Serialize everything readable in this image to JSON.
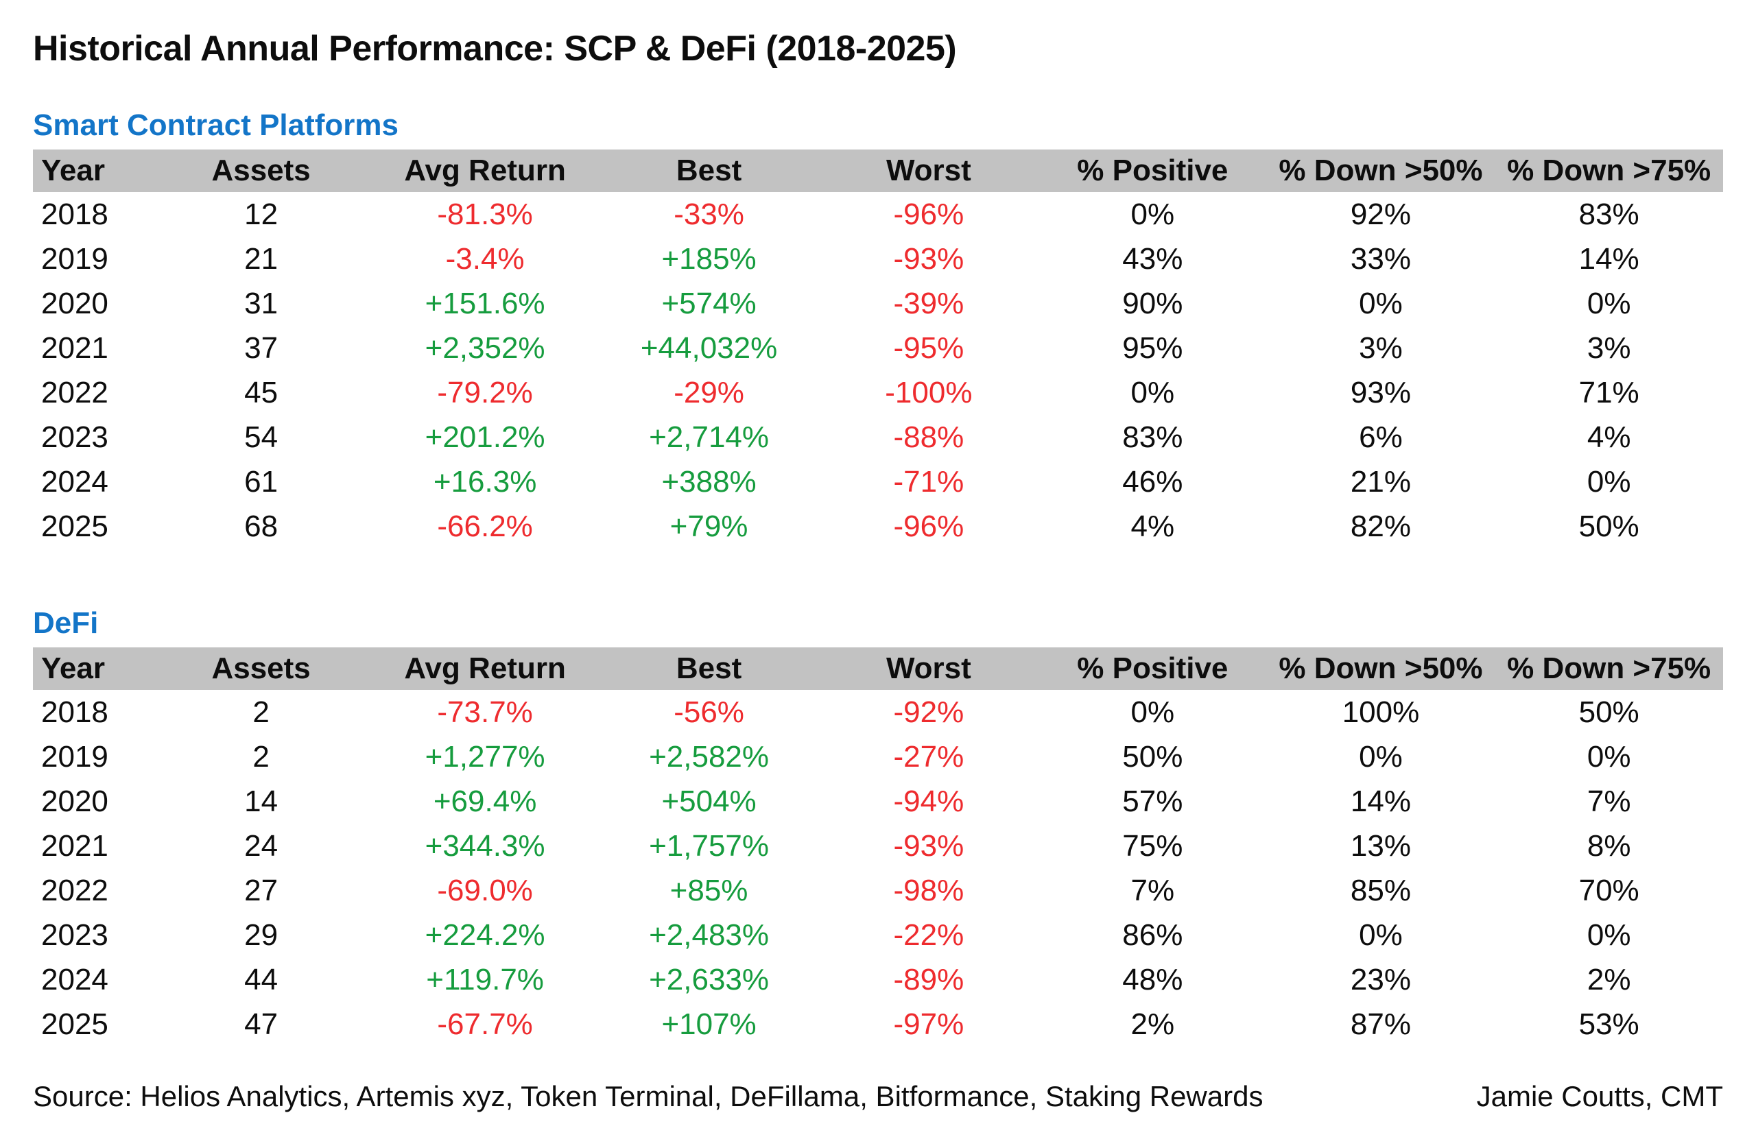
{
  "page_title": "Historical Annual Performance: SCP & DeFi (2018-2025)",
  "colors": {
    "accent_blue": "#1375c8",
    "positive_green": "#169c3e",
    "negative_red": "#ee2b2e",
    "header_band_gray": "#c2c2c2",
    "text_black": "#0d0d0d"
  },
  "columns": [
    "Year",
    "Assets",
    "Avg Return",
    "Best",
    "Worst",
    "% Positive",
    "% Down >50%",
    "% Down >75%"
  ],
  "footer": {
    "source": "Source: Helios Analytics, Artemis xyz, Token Terminal, DeFillama, Bitformance, Staking Rewards",
    "credit": "Jamie Coutts, CMT"
  },
  "chart_data": [
    {
      "type": "table",
      "title": "Smart Contract Platforms",
      "columns": [
        "Year",
        "Assets",
        "Avg Return",
        "Best",
        "Worst",
        "% Positive",
        "% Down >50%",
        "% Down >75%"
      ],
      "rows": [
        [
          "2018",
          "12",
          "-81.3%",
          "-33%",
          "-96%",
          "0%",
          "92%",
          "83%"
        ],
        [
          "2019",
          "21",
          "-3.4%",
          "+185%",
          "-93%",
          "43%",
          "33%",
          "14%"
        ],
        [
          "2020",
          "31",
          "+151.6%",
          "+574%",
          "-39%",
          "90%",
          "0%",
          "0%"
        ],
        [
          "2021",
          "37",
          "+2,352%",
          "+44,032%",
          "-95%",
          "95%",
          "3%",
          "3%"
        ],
        [
          "2022",
          "45",
          "-79.2%",
          "-29%",
          "-100%",
          "0%",
          "93%",
          "71%"
        ],
        [
          "2023",
          "54",
          "+201.2%",
          "+2,714%",
          "-88%",
          "83%",
          "6%",
          "4%"
        ],
        [
          "2024",
          "61",
          "+16.3%",
          "+388%",
          "-71%",
          "46%",
          "21%",
          "0%"
        ],
        [
          "2025",
          "68",
          "-66.2%",
          "+79%",
          "-96%",
          "4%",
          "82%",
          "50%"
        ]
      ]
    },
    {
      "type": "table",
      "title": "DeFi",
      "columns": [
        "Year",
        "Assets",
        "Avg Return",
        "Best",
        "Worst",
        "% Positive",
        "% Down >50%",
        "% Down >75%"
      ],
      "rows": [
        [
          "2018",
          "2",
          "-73.7%",
          "-56%",
          "-92%",
          "0%",
          "100%",
          "50%"
        ],
        [
          "2019",
          "2",
          "+1,277%",
          "+2,582%",
          "-27%",
          "50%",
          "0%",
          "0%"
        ],
        [
          "2020",
          "14",
          "+69.4%",
          "+504%",
          "-94%",
          "57%",
          "14%",
          "7%"
        ],
        [
          "2021",
          "24",
          "+344.3%",
          "+1,757%",
          "-93%",
          "75%",
          "13%",
          "8%"
        ],
        [
          "2022",
          "27",
          "-69.0%",
          "+85%",
          "-98%",
          "7%",
          "85%",
          "70%"
        ],
        [
          "2023",
          "29",
          "+224.2%",
          "+2,483%",
          "-22%",
          "86%",
          "0%",
          "0%"
        ],
        [
          "2024",
          "44",
          "+119.7%",
          "+2,633%",
          "-89%",
          "48%",
          "23%",
          "2%"
        ],
        [
          "2025",
          "47",
          "-67.7%",
          "+107%",
          "-97%",
          "2%",
          "87%",
          "53%"
        ]
      ]
    }
  ]
}
